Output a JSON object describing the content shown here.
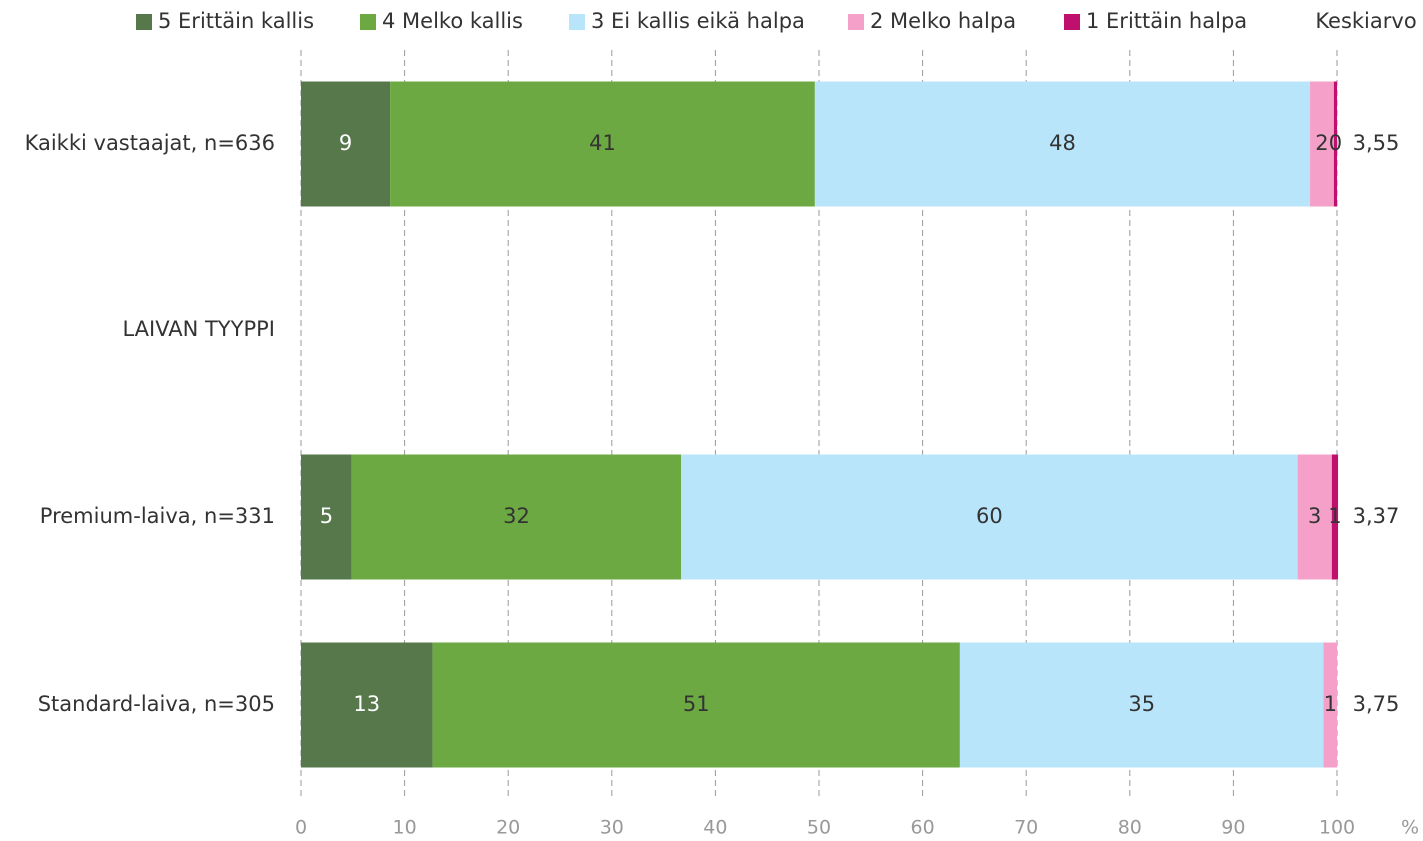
{
  "chart_data": {
    "type": "bar",
    "orientation": "horizontal",
    "stacked": true,
    "categories": [
      "Kaikki vastaajat, n=636",
      "LAIVAN TYYPPI",
      "Premium-laiva, n=331",
      "Standard-laiva, n=305"
    ],
    "series": [
      {
        "name": "5 Erittäin kallis",
        "color": "#56784b",
        "values": [
          8.6,
          null,
          4.9,
          12.7
        ],
        "value_labels": [
          "9",
          null,
          "5",
          "13"
        ]
      },
      {
        "name": "4 Melko kallis",
        "color": "#6da942",
        "values": [
          41,
          null,
          31.8,
          50.9
        ],
        "value_labels": [
          "41",
          null,
          "32",
          "51"
        ]
      },
      {
        "name": "3 Ei kallis eikä halpa",
        "color": "#b9e5fb",
        "values": [
          47.8,
          null,
          59.5,
          35.1
        ],
        "value_labels": [
          "48",
          null,
          "60",
          "35"
        ]
      },
      {
        "name": "2 Melko halpa",
        "color": "#f4a0c8",
        "values": [
          2.3,
          null,
          3.3,
          1.3
        ],
        "value_labels": [
          "2",
          null,
          "3",
          "1"
        ]
      },
      {
        "name": "1 Erittäin halpa",
        "color": "#c0106e",
        "values": [
          0.3,
          null,
          0.6,
          0
        ],
        "value_labels": [
          "0",
          null,
          "1",
          null
        ]
      }
    ],
    "averages": {
      "name": "Keskiarvo",
      "values": [
        3.55,
        null,
        3.37,
        3.75
      ],
      "value_labels": [
        "3,55",
        null,
        "3,37",
        "3,75"
      ]
    },
    "xlim": [
      0,
      100
    ],
    "xticks": [
      0,
      10,
      20,
      30,
      40,
      50,
      60,
      70,
      80,
      90,
      100
    ],
    "x_unit": "%",
    "grid": true,
    "legend": "top"
  }
}
